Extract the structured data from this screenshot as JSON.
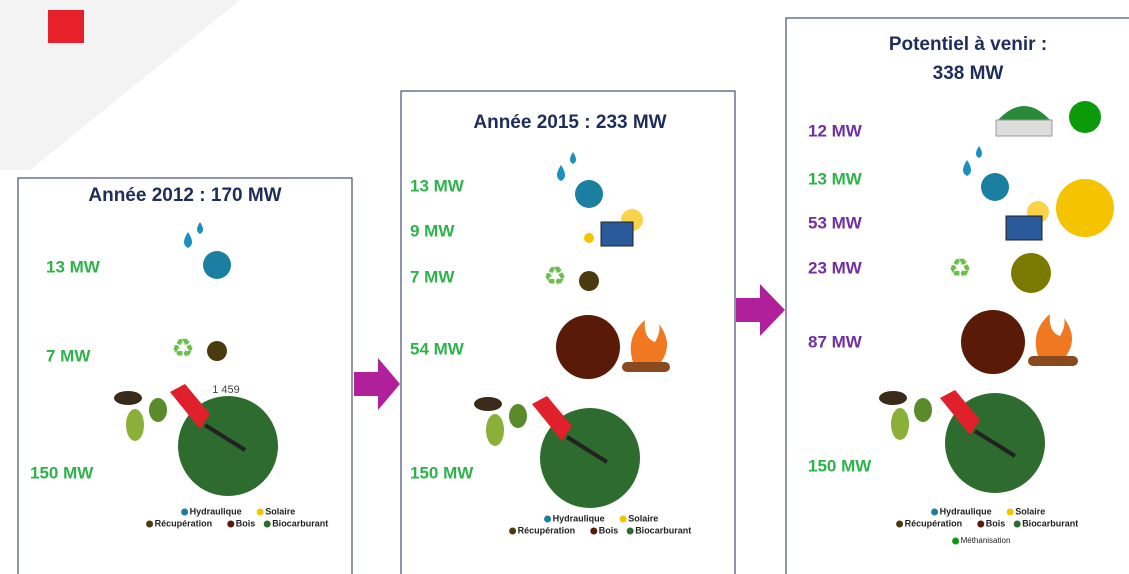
{
  "panels": [
    {
      "title": "Année 2012 : 170 MW",
      "items": [
        "13 MW",
        "7 MW",
        "150 MW"
      ],
      "note": "1 459",
      "legend": [
        "Hydraulique",
        "Solaire",
        "Récupération",
        "Bois",
        "Biocarburant"
      ]
    },
    {
      "title": "Année 2015 : 233 MW",
      "items": [
        "13 MW",
        "9 MW",
        "7 MW",
        "54 MW",
        "150 MW"
      ],
      "legend": [
        "Hydraulique",
        "Solaire",
        "Récupération",
        "Bois",
        "Biocarburant"
      ]
    },
    {
      "title": [
        "Potentiel à venir :",
        "338 MW"
      ],
      "items": [
        "12 MW",
        "13 MW",
        "53 MW",
        "23 MW",
        "87 MW",
        "150 MW"
      ],
      "legend": [
        "Hydraulique",
        "Solaire",
        "Récupération",
        "Bois",
        "Biocarburant",
        "Méthanisation"
      ]
    }
  ]
}
